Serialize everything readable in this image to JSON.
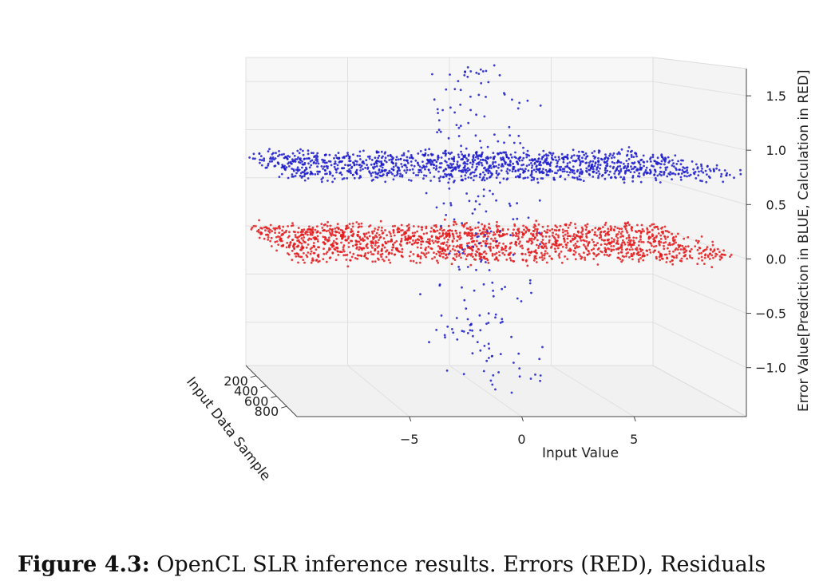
{
  "chart_data": {
    "type": "scatter",
    "projection": "3d",
    "title": "",
    "xlabel": "Input Value",
    "ylabel": "Input Data Sample",
    "zlabel": "Error Value[Prediction in BLUE, Calculation in RED]",
    "x_ticks": [
      "−5",
      "0",
      "5"
    ],
    "y_ticks": [
      "200",
      "400",
      "600",
      "800"
    ],
    "z_ticks": [
      "1.5",
      "1.0",
      "0.5",
      "0.0",
      "−0.5",
      "−1.0"
    ],
    "xlim": [
      -10,
      10
    ],
    "ylim": [
      0,
      1000
    ],
    "zlim": [
      -1.45,
      1.75
    ],
    "grid": true,
    "series": [
      {
        "color": "#e41a1c",
        "description": "red points: flat band near z = 0.0 across all input values",
        "z_center": 0.0,
        "z_spread": 0.1,
        "x_range": [
          -10,
          10
        ],
        "count": 1700
      },
      {
        "color": "#1a1acc",
        "description": "blue points: flat band near z = 0.75 across all input values, plus a vertical spread near x = 0 from z = -1.3 to 1.7",
        "z_center": 0.75,
        "z_spread": 0.1,
        "x_range": [
          -10,
          10
        ],
        "count": 1300,
        "vertical_count": 230,
        "vertical_x_range": [
          -1.5,
          1.5
        ],
        "vertical_z_range": [
          -1.35,
          1.7
        ]
      }
    ]
  },
  "caption": {
    "label": "Figure 4.3:",
    "text": " OpenCL SLR inference results. Errors (RED), Residuals"
  }
}
